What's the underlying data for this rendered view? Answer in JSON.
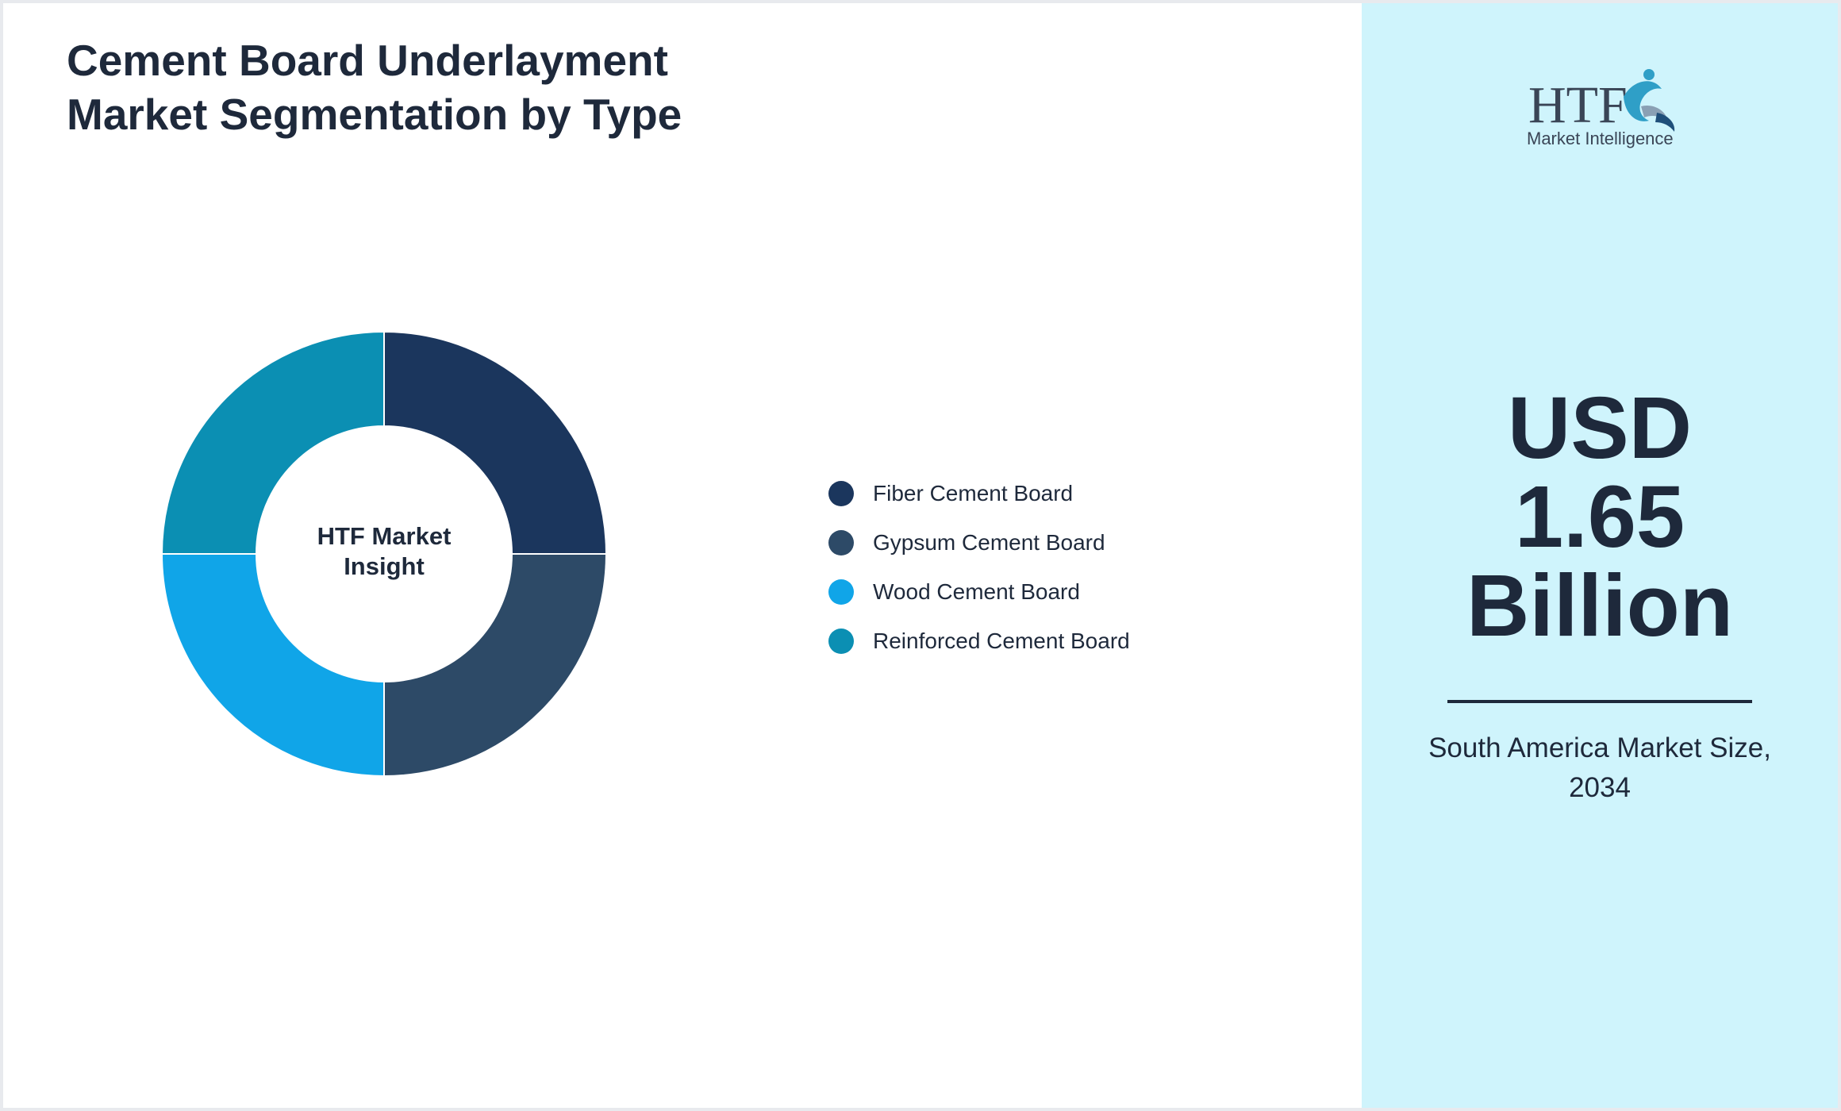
{
  "title": {
    "line1": "Cement Board Underlayment",
    "line2": "Market Segmentation by Type"
  },
  "chart_data": {
    "type": "pie",
    "variant": "donut",
    "center_label": [
      "HTF Market",
      "Insight"
    ],
    "categories": [
      "Fiber Cement Board",
      "Gypsum Cement Board",
      "Wood Cement Board",
      "Reinforced Cement Board"
    ],
    "values": [
      25,
      25,
      25,
      25
    ],
    "colors": [
      "#1b365d",
      "#2d4a67",
      "#10a5e8",
      "#0b8fb3"
    ],
    "legend_position": "right"
  },
  "side_panel": {
    "logo_text": "HTF",
    "logo_subtext": "Market Intelligence",
    "headline": [
      "USD",
      "1.65",
      "Billion"
    ],
    "caption": [
      "South America Market Size,",
      "2034"
    ]
  },
  "colors": {
    "side_background": "#cff4fc",
    "text": "#1e293b"
  }
}
